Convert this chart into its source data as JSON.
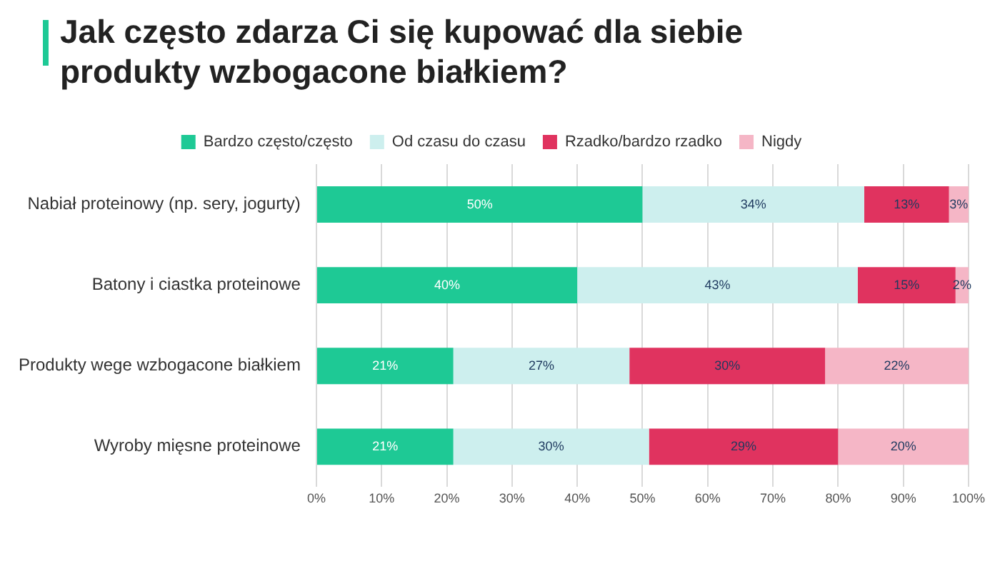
{
  "chart_data": {
    "type": "bar",
    "orientation": "horizontal",
    "stacked": true,
    "title": "Jak często zdarza Ci się kupować dla siebie produkty wzbogacone białkiem?",
    "categories": [
      "Nabiał proteinowy (np. sery, jogurty)",
      "Batony i ciastka proteinowe",
      "Produkty wege wzbogacone białkiem",
      "Wyroby mięsne proteinowe"
    ],
    "series": [
      {
        "name": "Bardzo często/często",
        "color": "#1ec995",
        "values": [
          50,
          40,
          21,
          21
        ],
        "value_labels": [
          "50%",
          "40%",
          "21%",
          "21%"
        ]
      },
      {
        "name": "Od czasu do czasu",
        "color": "#cdefee",
        "values": [
          34,
          43,
          27,
          30
        ],
        "value_labels": [
          "34%",
          "43%",
          "27%",
          "30%"
        ]
      },
      {
        "name": "Rzadko/bardzo rzadko",
        "color": "#e0335f",
        "values": [
          13,
          15,
          30,
          29
        ],
        "value_labels": [
          "13%",
          "15%",
          "30%",
          "29%"
        ]
      },
      {
        "name": "Nigdy",
        "color": "#f5b6c6",
        "values": [
          3,
          2,
          22,
          20
        ],
        "value_labels": [
          "3%",
          "2%",
          "22%",
          "20%"
        ]
      }
    ],
    "xlim": [
      0,
      100
    ],
    "xticks": [
      {
        "value": 0,
        "label": "0%"
      },
      {
        "value": 10,
        "label": "10%"
      },
      {
        "value": 20,
        "label": "20%"
      },
      {
        "value": 30,
        "label": "30%"
      },
      {
        "value": 40,
        "label": "40%"
      },
      {
        "value": 50,
        "label": "50%"
      },
      {
        "value": 60,
        "label": "60%"
      },
      {
        "value": 70,
        "label": "70%"
      },
      {
        "value": 80,
        "label": "80%"
      },
      {
        "value": 90,
        "label": "90%"
      },
      {
        "value": 100,
        "label": "100%"
      }
    ],
    "grid": "x",
    "legend": "top"
  }
}
